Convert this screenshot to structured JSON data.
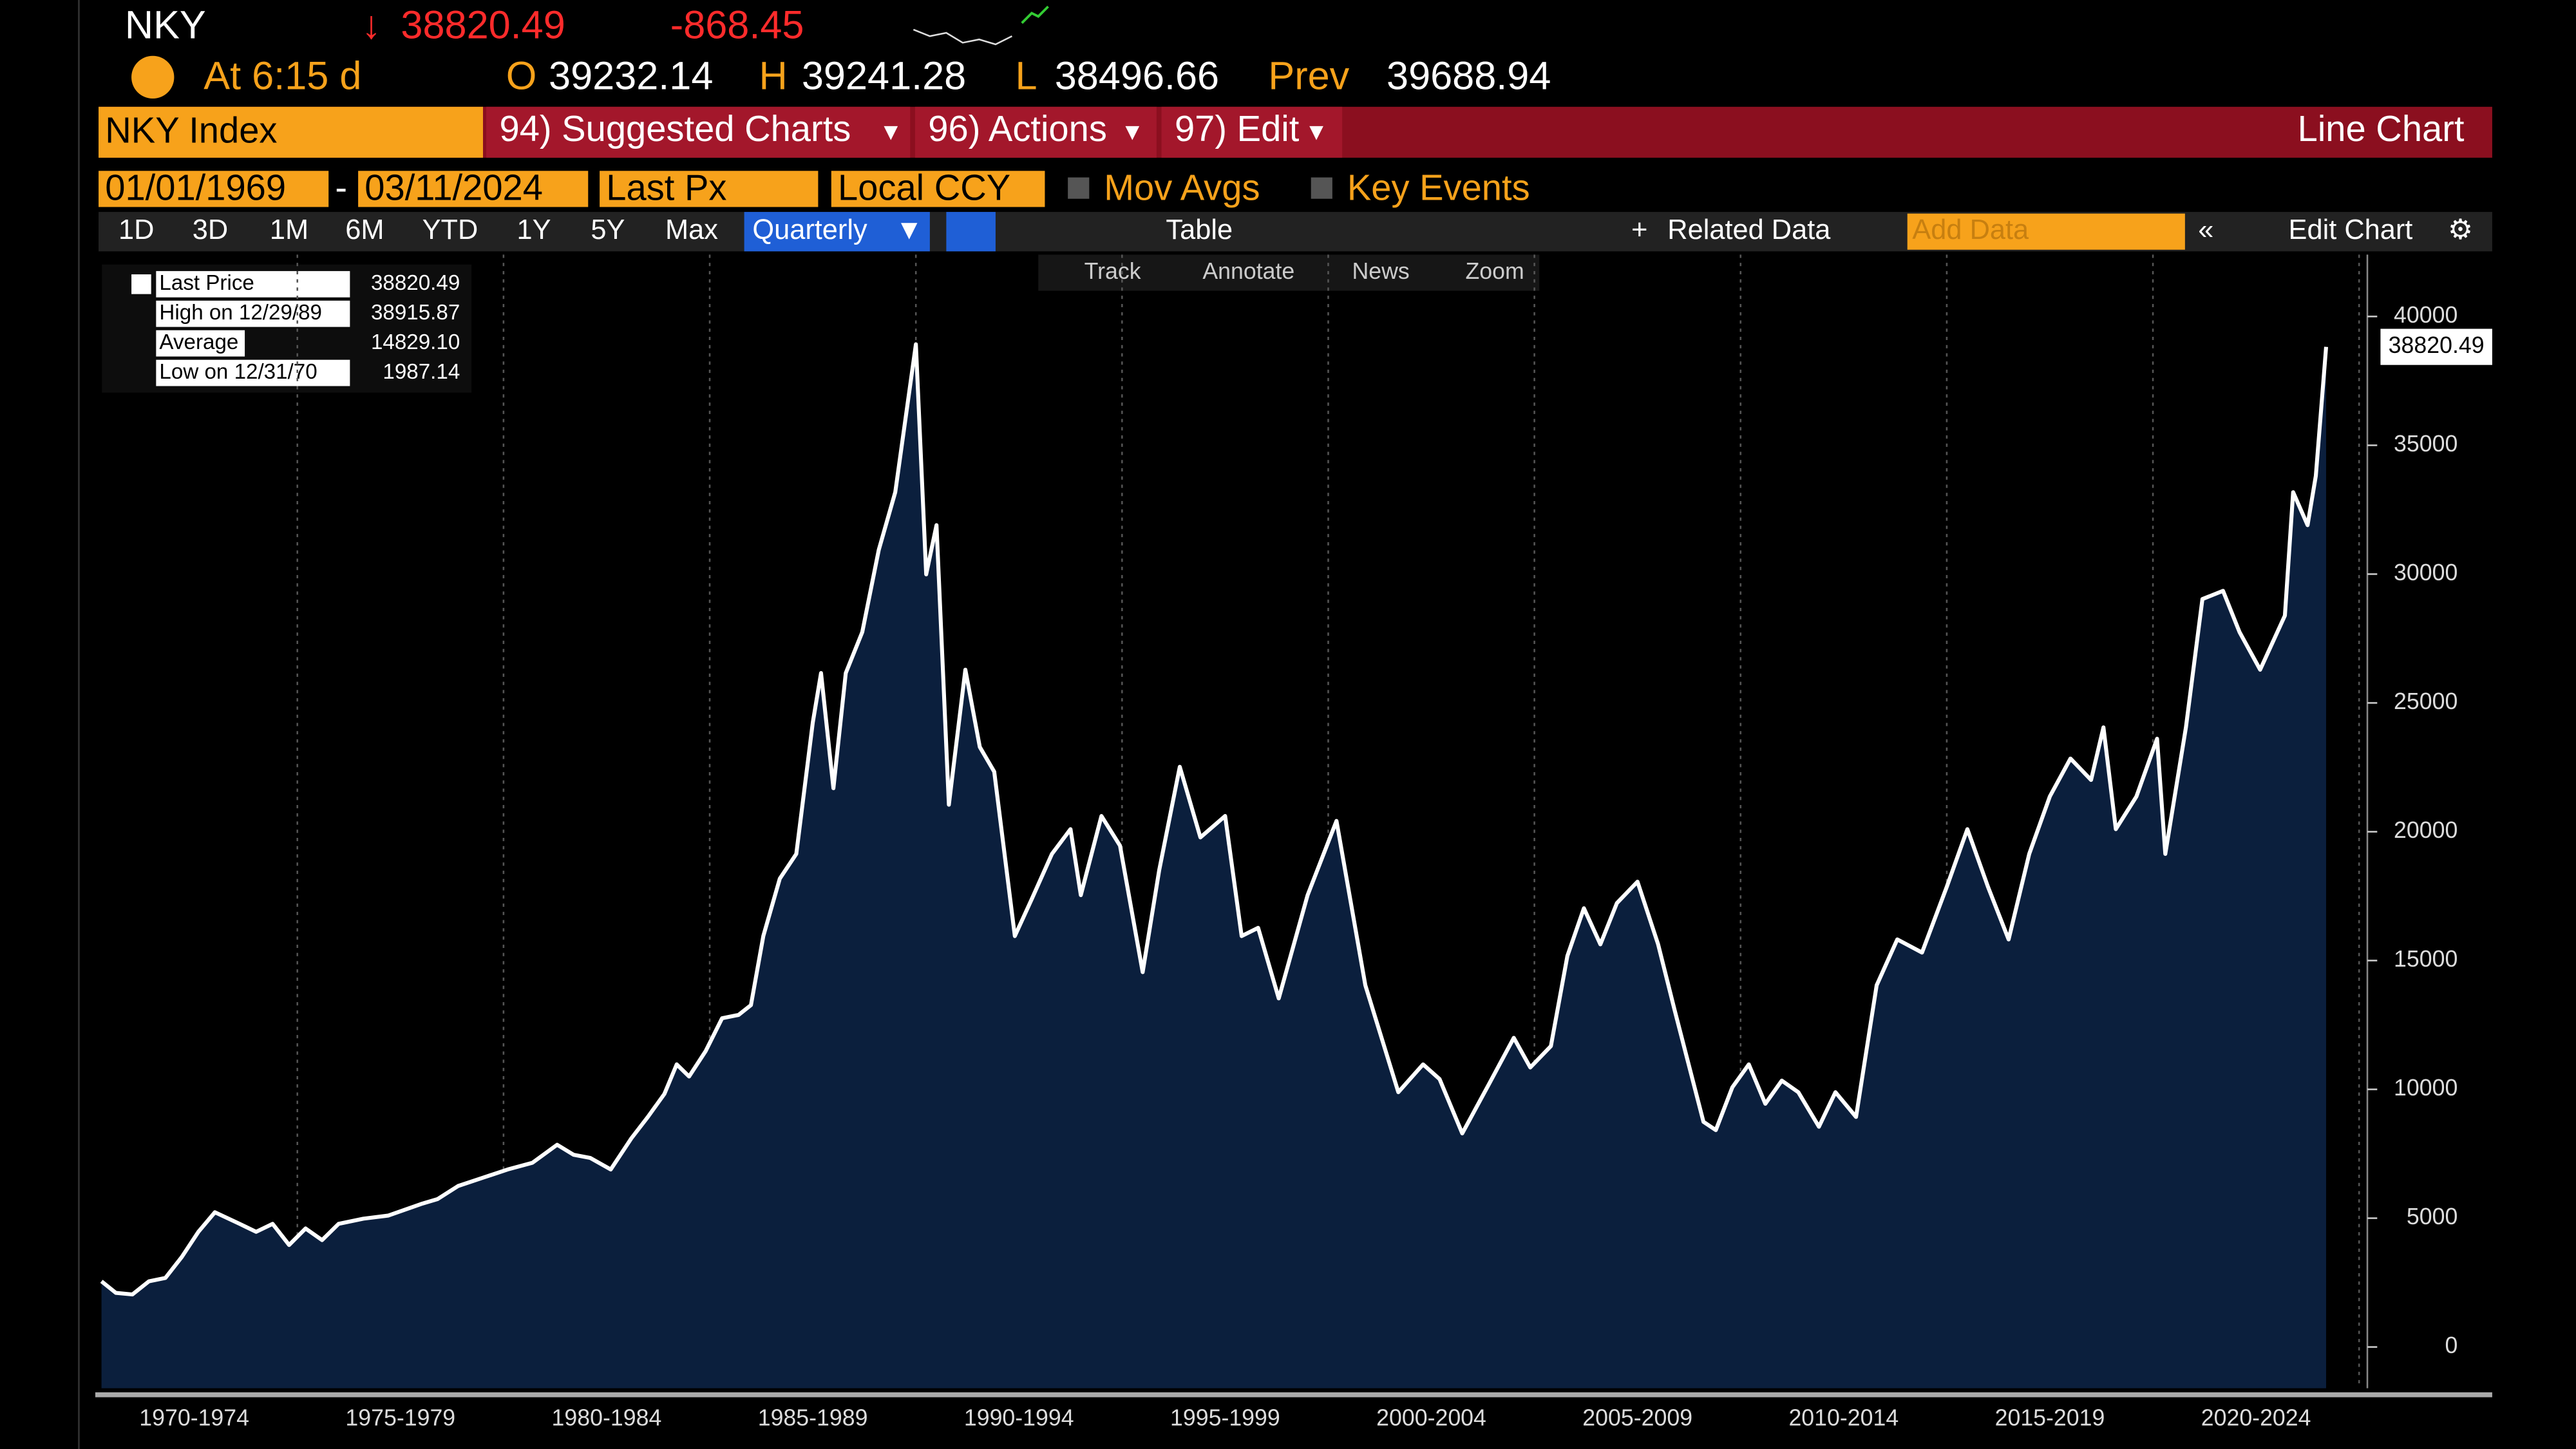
{
  "header": {
    "ticker": "NKY",
    "last": "38820.49",
    "change": "-868.45",
    "time": "At 6:15 d",
    "open_label": "O",
    "open": "39232.14",
    "high_label": "H",
    "high": "39241.28",
    "low_label": "L",
    "low": "38496.66",
    "prev_label": "Prev",
    "prev": "39688.94"
  },
  "toolbar": {
    "security": "NKY Index",
    "menu1": "94) Suggested Charts",
    "menu2": "96) Actions",
    "menu3": "97) Edit",
    "chart_kind": "Line Chart",
    "start_date": "01/01/1969",
    "end_date": "03/11/2024",
    "field": "Last Px",
    "currency": "Local CCY",
    "mov_avgs": "Mov Avgs",
    "key_events": "Key Events",
    "periods": [
      "1D",
      "3D",
      "1M",
      "6M",
      "YTD",
      "1Y",
      "5Y",
      "Max"
    ],
    "frequency": "Quarterly",
    "table": "Table",
    "related": "Related Data",
    "add_data": "Add Data",
    "edit_chart": "Edit Chart",
    "tools": [
      "Track",
      "Annotate",
      "News",
      "Zoom"
    ]
  },
  "legend": {
    "rows": [
      {
        "label": "Last Price",
        "value": "38820.49"
      },
      {
        "label": "High on 12/29/89",
        "value": "38915.87"
      },
      {
        "label": "Average",
        "value": "14829.10"
      },
      {
        "label": "Low on 12/31/70",
        "value": "1987.14"
      }
    ]
  },
  "chart_data": {
    "type": "area",
    "color": "#ffffff",
    "fill": "#0b1f3d",
    "last_price_label": "38820.49",
    "x": [
      1970.25,
      1970.6,
      1971.0,
      1971.4,
      1971.8,
      1972.2,
      1972.6,
      1973.0,
      1973.6,
      1974.0,
      1974.4,
      1974.8,
      1975.2,
      1975.6,
      1976.0,
      1976.6,
      1977.2,
      1978.0,
      1978.4,
      1978.9,
      1979.5,
      1980.1,
      1980.7,
      1981.3,
      1981.7,
      1982.1,
      1982.6,
      1983.1,
      1983.5,
      1983.9,
      1984.2,
      1984.5,
      1984.9,
      1985.3,
      1985.7,
      1986.0,
      1986.3,
      1986.7,
      1987.1,
      1987.5,
      1987.7,
      1988.0,
      1988.3,
      1988.7,
      1989.1,
      1989.5,
      1990.0,
      1990.25,
      1990.5,
      1990.8,
      1991.2,
      1991.55,
      1991.9,
      1992.4,
      1992.8,
      1993.3,
      1993.75,
      1994.0,
      1994.5,
      1994.95,
      1995.5,
      1995.9,
      1996.4,
      1996.9,
      1997.5,
      1997.9,
      1998.3,
      1998.8,
      1999.5,
      2000.2,
      2000.9,
      2001.7,
      2002.3,
      2002.7,
      2003.25,
      2003.9,
      2004.5,
      2004.9,
      2005.4,
      2005.8,
      2006.2,
      2006.6,
      2007.0,
      2007.5,
      2008.0,
      2008.4,
      2009.1,
      2009.4,
      2009.8,
      2010.2,
      2010.6,
      2011.0,
      2011.4,
      2011.9,
      2012.3,
      2012.8,
      2013.3,
      2013.8,
      2014.4,
      2015.0,
      2015.5,
      2016.0,
      2016.5,
      2017.0,
      2017.5,
      2018.0,
      2018.5,
      2018.8,
      2019.1,
      2019.6,
      2020.1,
      2020.3,
      2020.8,
      2021.2,
      2021.7,
      2022.1,
      2022.6,
      2023.2,
      2023.4,
      2023.75,
      2023.95,
      2024.2
    ],
    "values": [
      2550,
      2100,
      2040,
      2550,
      2680,
      3500,
      4470,
      5230,
      4780,
      4470,
      4780,
      3960,
      4600,
      4150,
      4780,
      4980,
      5100,
      5550,
      5740,
      6250,
      6570,
      6890,
      7150,
      7850,
      7460,
      7340,
      6890,
      8100,
      8930,
      9820,
      10970,
      10500,
      11480,
      12760,
      12890,
      13270,
      15950,
      18180,
      19140,
      24240,
      26160,
      21690,
      26160,
      27750,
      30940,
      33180,
      38920,
      29990,
      31900,
      21050,
      26290,
      23290,
      22330,
      15950,
      17350,
      19140,
      20100,
      17540,
      20610,
      19460,
      14550,
      18500,
      22520,
      19780,
      20610,
      15950,
      16270,
      13530,
      17540,
      20420,
      14040,
      9890,
      10970,
      10400,
      8290,
      10210,
      12000,
      10850,
      11680,
      15180,
      17030,
      15630,
      17230,
      18060,
      15630,
      13080,
      8740,
      8420,
      10080,
      10970,
      9440,
      10340,
      9890,
      8550,
      9890,
      8930,
      14040,
      15820,
      15310,
      17860,
      20100,
      17860,
      15820,
      19140,
      21370,
      22840,
      22010,
      24050,
      20100,
      21370,
      23610,
      19140,
      24050,
      29030,
      29350,
      27750,
      26290,
      28390,
      33180,
      31900,
      33810,
      38820
    ],
    "xlim": [
      1970,
      2025.2
    ],
    "ylim": [
      -1600,
      42400
    ],
    "yticks": [
      0,
      5000,
      10000,
      15000,
      20000,
      25000,
      30000,
      35000,
      40000
    ],
    "xticks": [
      {
        "value": 1972.5,
        "label": "1970-1974"
      },
      {
        "value": 1977.5,
        "label": "1975-1979"
      },
      {
        "value": 1982.5,
        "label": "1980-1984"
      },
      {
        "value": 1987.5,
        "label": "1985-1989"
      },
      {
        "value": 1992.5,
        "label": "1990-1994"
      },
      {
        "value": 1997.5,
        "label": "1995-1999"
      },
      {
        "value": 2002.5,
        "label": "2000-2004"
      },
      {
        "value": 2007.5,
        "label": "2005-2009"
      },
      {
        "value": 2012.5,
        "label": "2010-2014"
      },
      {
        "value": 2017.5,
        "label": "2015-2019"
      },
      {
        "value": 2022.5,
        "label": "2020-2024"
      }
    ],
    "xgrid": [
      1975,
      1980,
      1985,
      1990,
      1995,
      2000,
      2005,
      2010,
      2015,
      2020,
      2025
    ],
    "grid": true
  }
}
